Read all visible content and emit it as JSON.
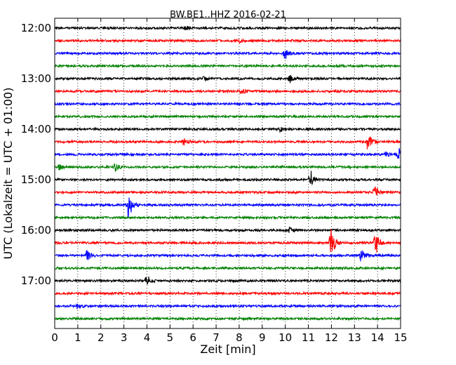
{
  "chart_data": {
    "type": "line",
    "title": "BW.BE1..HHZ 2016-02-21",
    "xlabel": "Zeit  [min]",
    "ylabel": "UTC (Lokalzeit = UTC + 01:00)",
    "xlim": [
      0,
      15
    ],
    "x_ticks": [
      "0",
      "1",
      "2",
      "3",
      "4",
      "5",
      "6",
      "7",
      "8",
      "9",
      "10",
      "11",
      "12",
      "13",
      "14",
      "15"
    ],
    "y_ticks": [
      "12:00",
      "13:00",
      "14:00",
      "15:00",
      "16:00",
      "17:00"
    ],
    "grid": "vertical dotted",
    "colors": [
      "#000000",
      "#ff0000",
      "#0000ff",
      "#008000"
    ],
    "series": [
      {
        "values": [
          {
            "x": 5.7,
            "amp": 0.2
          }
        ]
      },
      {
        "values": [
          {
            "x": 8.0,
            "amp": 0.15
          }
        ]
      },
      {
        "values": [
          {
            "x": 10.0,
            "amp": 0.6
          }
        ]
      },
      {
        "values": []
      },
      {
        "values": [
          {
            "x": 6.5,
            "amp": 0.2
          },
          {
            "x": 10.2,
            "amp": 0.5
          }
        ]
      },
      {
        "values": [
          {
            "x": 8.1,
            "amp": 0.3
          }
        ]
      },
      {
        "values": []
      },
      {
        "values": []
      },
      {
        "values": [
          {
            "x": 9.8,
            "amp": 0.2
          }
        ]
      },
      {
        "values": [
          {
            "x": 5.6,
            "amp": 0.4
          },
          {
            "x": 13.6,
            "amp": 0.9
          }
        ]
      },
      {
        "values": [
          {
            "x": 14.4,
            "amp": 0.4
          },
          {
            "x": 14.9,
            "amp": 0.6
          }
        ]
      },
      {
        "values": [
          {
            "x": 0.2,
            "amp": 0.3
          },
          {
            "x": 2.6,
            "amp": 0.5
          }
        ]
      },
      {
        "values": [
          {
            "x": 11.1,
            "amp": 0.8
          }
        ]
      },
      {
        "values": [
          {
            "x": 13.9,
            "amp": 0.6
          }
        ]
      },
      {
        "values": [
          {
            "x": 3.2,
            "amp": 1.5
          }
        ]
      },
      {
        "values": []
      },
      {
        "values": [
          {
            "x": 10.2,
            "amp": 0.3
          }
        ]
      },
      {
        "values": [
          {
            "x": 12.0,
            "amp": 1.6
          },
          {
            "x": 13.9,
            "amp": 1.3
          }
        ]
      },
      {
        "values": [
          {
            "x": 1.4,
            "amp": 0.5
          },
          {
            "x": 13.3,
            "amp": 0.7
          }
        ]
      },
      {
        "values": []
      },
      {
        "values": [
          {
            "x": 4.0,
            "amp": 0.5
          }
        ]
      },
      {
        "values": []
      },
      {
        "values": [
          {
            "x": 1.0,
            "amp": 0.3
          }
        ]
      },
      {
        "values": []
      }
    ]
  }
}
